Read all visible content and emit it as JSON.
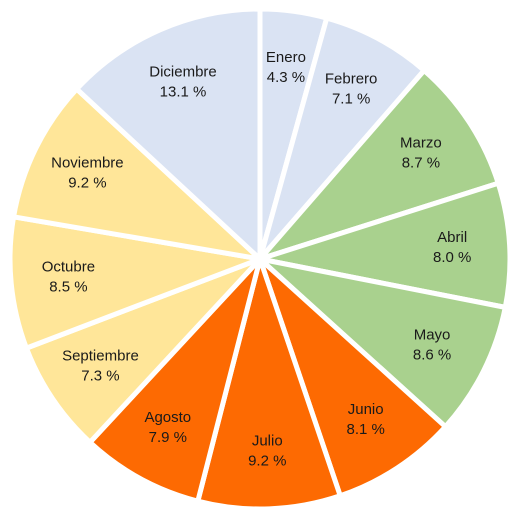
{
  "chart_data": {
    "type": "pie",
    "categories": [
      "Enero",
      "Febrero",
      "Marzo",
      "Abril",
      "Mayo",
      "Junio",
      "Julio",
      "Agosto",
      "Septiembre",
      "Octubre",
      "Noviembre",
      "Diciembre"
    ],
    "values": [
      4.3,
      7.1,
      8.7,
      8.0,
      8.6,
      8.1,
      9.2,
      7.9,
      7.3,
      8.5,
      9.2,
      13.1
    ],
    "value_labels": [
      "4.3 %",
      "7.1 %",
      "8.7 %",
      "8.0 %",
      "8.6 %",
      "8.1 %",
      "9.2 %",
      "7.9 %",
      "7.3 %",
      "8.5 %",
      "9.2 %",
      "13.1 %"
    ],
    "colors": [
      "#dae3f3",
      "#dae3f3",
      "#a9d18e",
      "#a9d18e",
      "#a9d18e",
      "#fd6a02",
      "#fd6a02",
      "#fd6a02",
      "#ffe699",
      "#ffe699",
      "#ffe699",
      "#dae3f3"
    ]
  }
}
